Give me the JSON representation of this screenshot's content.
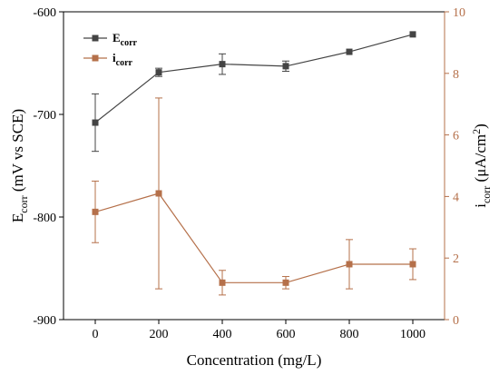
{
  "chart_data": {
    "type": "line",
    "x": [
      0,
      200,
      400,
      600,
      800,
      1000
    ],
    "xlabel": "Concentration (mg/L)",
    "xlim": [
      -100,
      1100
    ],
    "xticks": [
      0,
      200,
      400,
      600,
      800,
      1000
    ],
    "ylabel_left": {
      "main": "E",
      "sub": "corr",
      "rest": " (mV vs SCE)"
    },
    "ylim_left": [
      -900,
      -600
    ],
    "yticks_left": [
      -600,
      -700,
      -800,
      -900
    ],
    "ylabel_right": {
      "main": "i",
      "sub": "corr",
      "rest1": " (μA/cm",
      "sup": "2",
      "rest2": ")"
    },
    "ylim_right": [
      0,
      10
    ],
    "yticks_right": [
      0,
      2,
      4,
      6,
      8,
      10
    ],
    "legend_position": "top-left",
    "series": [
      {
        "name_main": "E",
        "name_sub": "corr",
        "axis": "left",
        "color": "#444444",
        "values": [
          -708,
          -659,
          -651,
          -653,
          -639,
          -622
        ],
        "errors": [
          28,
          4,
          10,
          5,
          0,
          0
        ]
      },
      {
        "name_main": "i",
        "name_sub": "corr",
        "axis": "right",
        "color": "#b5704a",
        "values": [
          3.5,
          4.1,
          1.2,
          1.2,
          1.8,
          1.8
        ],
        "errors": [
          1.0,
          3.1,
          0.4,
          0.2,
          0.8,
          0.5
        ]
      }
    ],
    "colors": {
      "right_axis": "#b5704a",
      "left_axis": "#000000"
    }
  }
}
